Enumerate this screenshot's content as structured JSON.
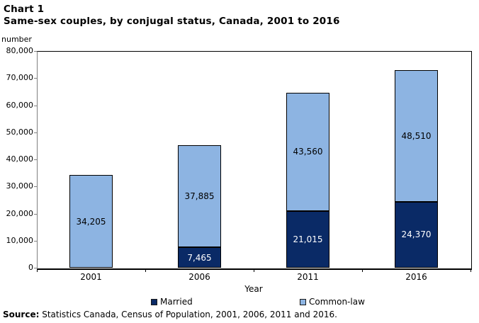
{
  "header": {
    "chart_label": "Chart 1",
    "title": "Same-sex couples, by conjugal status, Canada, 2001 to 2016"
  },
  "axes": {
    "y_unit": "number",
    "x_title": "Year",
    "y_tick_labels": [
      "0",
      "10,000",
      "20,000",
      "30,000",
      "40,000",
      "50,000",
      "60,000",
      "70,000",
      "80,000"
    ]
  },
  "legend": {
    "items": [
      {
        "label": "Married",
        "color": "#0a2a66"
      },
      {
        "label": "Common-law",
        "color": "#8db4e2"
      }
    ]
  },
  "source": {
    "prefix": "Source:",
    "text": " Statistics Canada, Census of Population, 2001, 2006, 2011 and 2016."
  },
  "chart_data": {
    "type": "bar",
    "stacked": true,
    "title": "Same-sex couples, by conjugal status, Canada, 2001 to 2016",
    "xlabel": "Year",
    "ylabel": "number",
    "categories": [
      "2001",
      "2006",
      "2011",
      "2016"
    ],
    "series": [
      {
        "name": "Married",
        "color": "#0a2a66",
        "label_color": "#ffffff",
        "values": [
          0,
          7465,
          21015,
          24370
        ],
        "value_labels": [
          "0",
          "7,465",
          "21,015",
          "24,370"
        ]
      },
      {
        "name": "Common-law",
        "color": "#8db4e2",
        "label_color": "#000000",
        "values": [
          34205,
          37885,
          43560,
          48510
        ],
        "value_labels": [
          "34,205",
          "37,885",
          "43,560",
          "48,510"
        ]
      }
    ],
    "totals": [
      34205,
      45350,
      64575,
      72880
    ],
    "ylim": [
      0,
      80000
    ],
    "ytick_interval": 10000,
    "grid": false,
    "legend_position": "bottom"
  }
}
